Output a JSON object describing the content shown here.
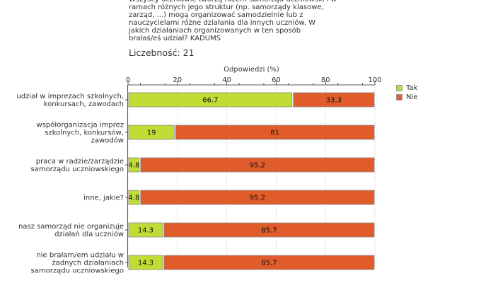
{
  "question": "Wszyscy uczniowie tworzą razem samorząd uczniowski i w\nramach różnych jego struktur (np. samorządy klasowe,\nzarząd, ...) mogą organizować samodzielnie lub z\nnauczycielami różne działania dla innych uczniów. W\njakich działaniach organizowanych w ten sposób\nbrałaś/eś udział? KADUMS",
  "count_label": "Liczebność: 21",
  "colors": {
    "tak": "#c0dd35",
    "nie": "#e05c2a",
    "border": "#8a8a8a"
  },
  "chart_data": {
    "type": "bar",
    "orientation": "horizontal",
    "stacked": true,
    "title": "",
    "xlabel": "Odpowiedzi (%)",
    "ylabel": "",
    "xlim": [
      0,
      100
    ],
    "xticks": [
      0,
      20,
      40,
      60,
      80,
      100
    ],
    "grid": true,
    "legend_position": "right",
    "categories": [
      [
        "udział w imprezach szkolnych,",
        "konkursach, zawodach"
      ],
      [
        "współorganizacja imprez",
        "szkolnych, konkursów,",
        "zawodów"
      ],
      [
        "praca w radzie/zarządzie",
        "samorządu uczniowskiego"
      ],
      [
        "inne, jakie?"
      ],
      [
        "nasz samorząd nie organizuje",
        "działań dla uczniów"
      ],
      [
        "nie brałam/em udziału w",
        "żadnych działaniach",
        "samorządu uczniowskiego"
      ]
    ],
    "series": [
      {
        "name": "Tak",
        "values": [
          66.7,
          19,
          4.8,
          4.8,
          14.3,
          14.3
        ]
      },
      {
        "name": "Nie",
        "values": [
          33.3,
          81,
          95.2,
          95.2,
          85.7,
          85.7
        ]
      }
    ]
  }
}
